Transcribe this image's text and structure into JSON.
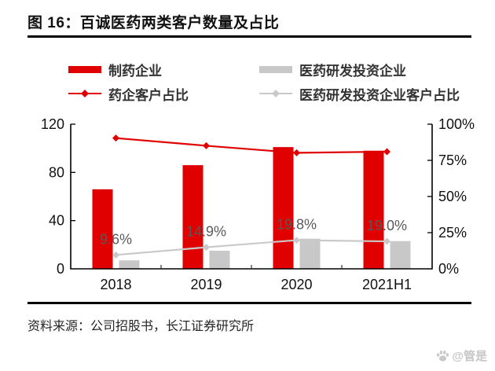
{
  "figure": {
    "title": "图 16：百诚医药两类客户数量及占比",
    "source": "资料来源：公司招股书，长江证券研究所",
    "watermark": "@管是"
  },
  "colors": {
    "red": "#e00000",
    "gray_bar": "#c8c8c8",
    "gray_line": "#c9c9c9",
    "axis": "#000000",
    "data_label": "#595959"
  },
  "legend": {
    "items": [
      {
        "label": "制药企业",
        "type": "bar",
        "color": "#e00000"
      },
      {
        "label": "医药研发投资企业",
        "type": "bar",
        "color": "#c8c8c8"
      },
      {
        "label": "药企客户占比",
        "type": "line",
        "color": "#e00000"
      },
      {
        "label": "医药研发投资企业客户占比",
        "type": "line",
        "color": "#c9c9c9"
      }
    ]
  },
  "chart_data": {
    "type": "bar+line combo, dual axis",
    "categories": [
      "2018",
      "2019",
      "2020",
      "2021H1"
    ],
    "left_axis": {
      "label": "",
      "min": 0,
      "max": 120,
      "ticks": [
        0,
        40,
        80,
        120
      ]
    },
    "right_axis": {
      "label": "",
      "min": 0,
      "max": 100,
      "ticks": [
        0,
        25,
        50,
        75,
        100
      ],
      "tick_labels": [
        "0%",
        "25%",
        "50%",
        "75%",
        "100%"
      ]
    },
    "bar_series": [
      {
        "name": "制药企业",
        "axis": "left",
        "color": "#e00000",
        "values": [
          66,
          86,
          101,
          98
        ]
      },
      {
        "name": "医药研发投资企业",
        "axis": "left",
        "color": "#c8c8c8",
        "values": [
          7,
          15,
          25,
          23
        ]
      }
    ],
    "line_series": [
      {
        "name": "药企客户占比",
        "axis": "right",
        "color": "#e00000",
        "marker": "diamond",
        "values": [
          90.4,
          85.1,
          80.2,
          81.0
        ]
      },
      {
        "name": "医药研发投资企业客户占比",
        "axis": "right",
        "color": "#c9c9c9",
        "marker": "diamond",
        "values": [
          9.6,
          14.9,
          19.8,
          19.0
        ],
        "data_labels": [
          "9.6%",
          "14.9%",
          "19.8%",
          "19.0%"
        ]
      }
    ],
    "grid": false,
    "legend_position": "top"
  }
}
